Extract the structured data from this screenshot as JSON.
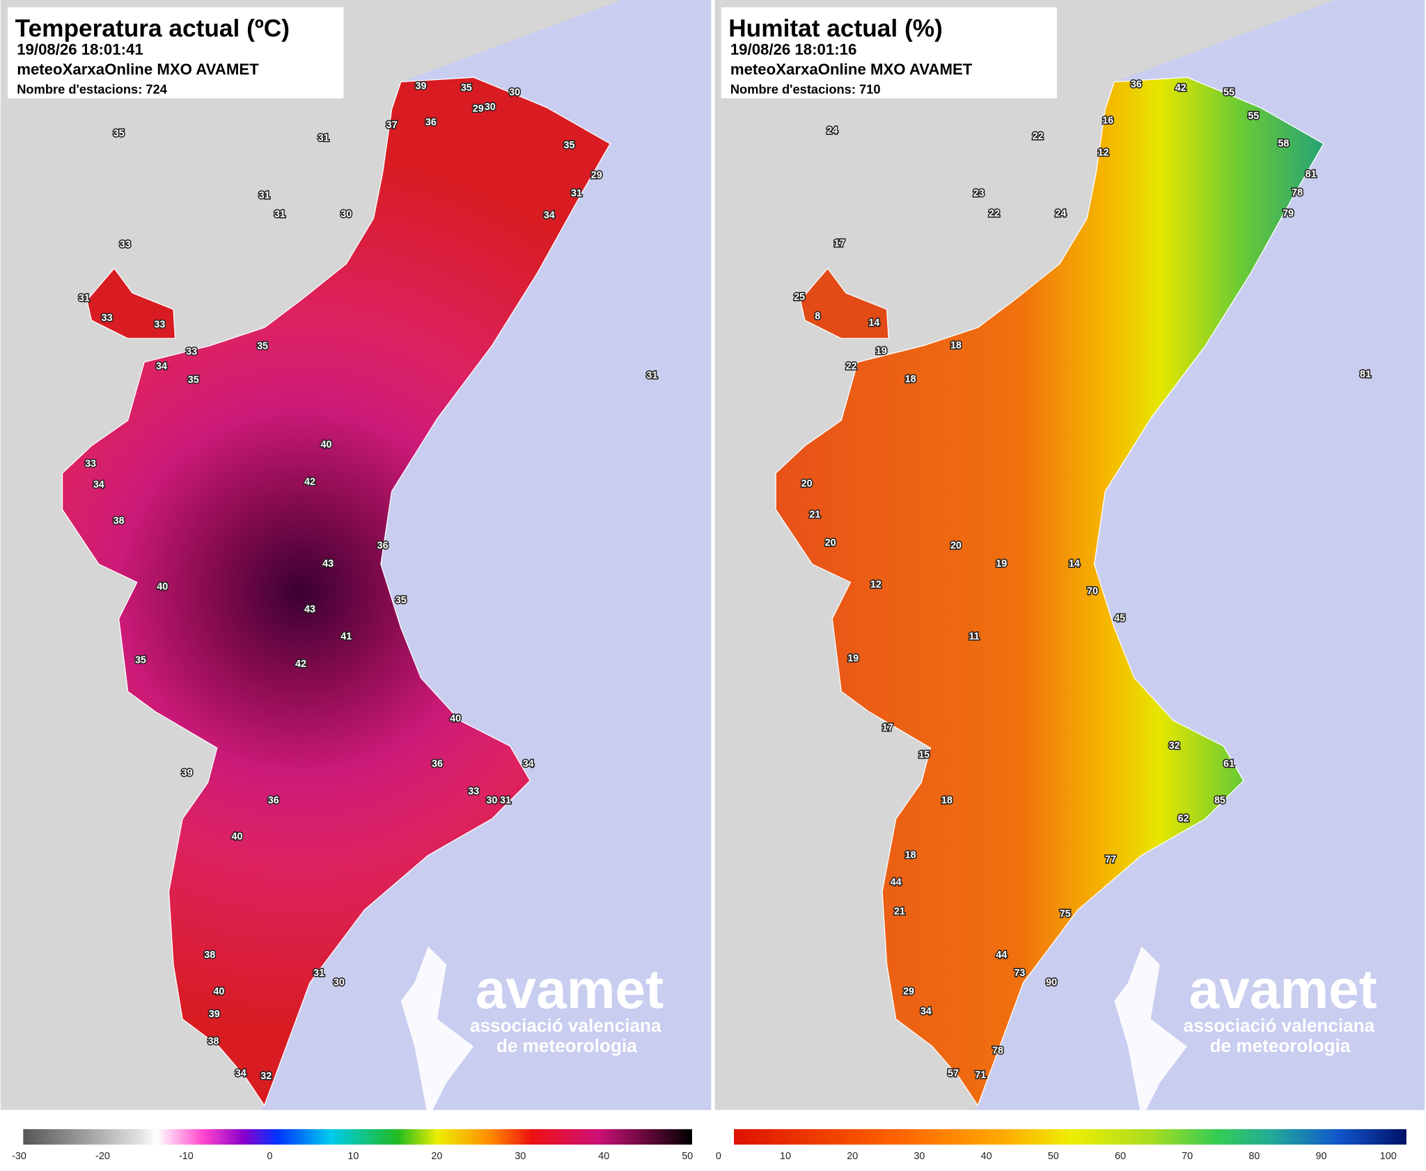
{
  "panels": [
    {
      "title": "Temperatura actual (ºC)",
      "timestamp": "19/08/26 18:01:41",
      "source": "meteoXarxaOnline MXO AVAMET",
      "stations_label": "Nombre d'estacions: 724",
      "stations": [
        39,
        35,
        30,
        30,
        29,
        36,
        37,
        35,
        29,
        31,
        34,
        35,
        31,
        31,
        31,
        30,
        33,
        31,
        33,
        33,
        33,
        34,
        35,
        35,
        40,
        42,
        43,
        43,
        42,
        41,
        36,
        35,
        40,
        33,
        30,
        36,
        36,
        40,
        38,
        40,
        39,
        38,
        34,
        32,
        31,
        30,
        31,
        33,
        34,
        38,
        40,
        35,
        39,
        34,
        31
      ],
      "colorbar_ticks": [
        -30,
        -20,
        -10,
        0,
        10,
        20,
        30,
        40,
        50
      ]
    },
    {
      "title": "Humitat actual (%)",
      "timestamp": "19/08/26 18:01:16",
      "source": "meteoXarxaOnline MXO AVAMET",
      "stations_label": "Nombre d'estacions: 710",
      "stations": [
        36,
        42,
        55,
        55,
        58,
        81,
        78,
        79,
        12,
        16,
        24,
        22,
        23,
        22,
        24,
        17,
        25,
        8,
        14,
        19,
        22,
        18,
        81,
        18,
        11,
        20,
        19,
        14,
        70,
        45,
        32,
        61,
        85,
        62,
        77,
        75,
        44,
        73,
        90,
        29,
        34,
        57,
        71,
        78,
        20,
        21,
        20,
        12,
        19,
        17,
        15,
        18,
        18,
        44,
        21
      ],
      "colorbar_ticks": [
        0,
        10,
        20,
        30,
        40,
        50,
        60,
        70,
        80,
        90,
        100
      ]
    }
  ],
  "logo": {
    "name": "avamet",
    "line1": "associació valenciana",
    "line2": "de meteorologia"
  }
}
